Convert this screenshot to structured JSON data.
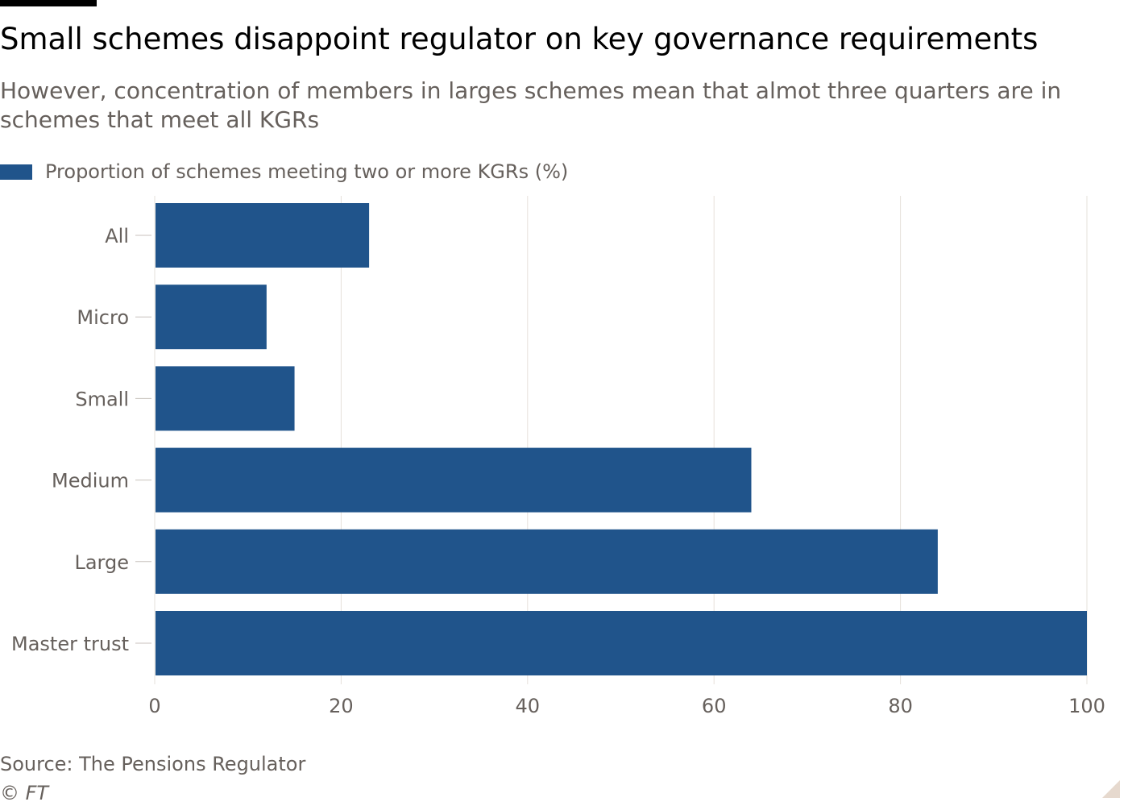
{
  "header": {
    "title": "Small schemes disappoint regulator on key governance requirements",
    "subtitle": "However, concentration of members in larges schemes mean that almot three quarters are in schemes that meet all KGRs"
  },
  "footer": {
    "source": "Source: The Pensions Regulator",
    "copyright": "© FT"
  },
  "colors": {
    "bar": "#20548b",
    "grid": "#e6e0db",
    "axis": "#c8c2bd"
  },
  "chart_data": {
    "type": "bar",
    "orientation": "horizontal",
    "title": "Small schemes disappoint regulator on key governance requirements",
    "subtitle": "However, concentration of members in larges schemes mean that almot three quarters are in schemes that meet all KGRs",
    "categories": [
      "All",
      "Micro",
      "Small",
      "Medium",
      "Large",
      "Master trust"
    ],
    "series": [
      {
        "name": "Proportion of schemes meeting two or more KGRs (%)",
        "values": [
          23,
          12,
          15,
          64,
          84,
          100
        ]
      }
    ],
    "xlim": [
      0,
      100
    ],
    "xticks": [
      0,
      20,
      40,
      60,
      80,
      100
    ],
    "grid": true,
    "legend": "top-left"
  }
}
